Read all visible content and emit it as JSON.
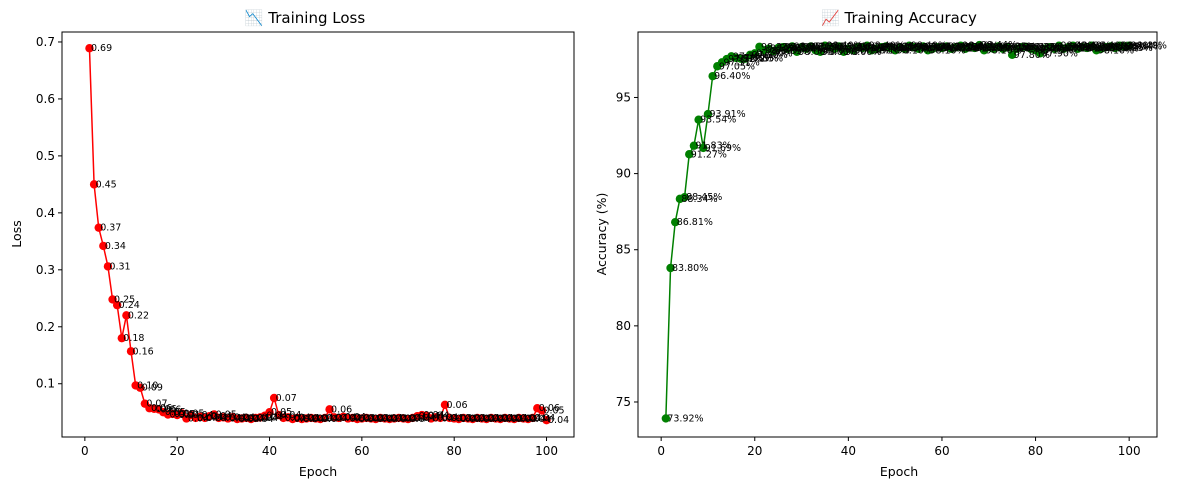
{
  "chart_data": [
    {
      "type": "line",
      "title": "📉 Training Loss",
      "xlabel": "Epoch",
      "ylabel": "Loss",
      "xlim": [
        -4.95,
        105.95
      ],
      "ylim": [
        0.0065,
        0.7175
      ],
      "xticks": [
        0,
        20,
        40,
        60,
        80,
        100
      ],
      "yticks": [
        0.1,
        0.2,
        0.3,
        0.4,
        0.5,
        0.6,
        0.7
      ],
      "ytick_labels": [
        "0.1",
        "0.2",
        "0.3",
        "0.4",
        "0.5",
        "0.6",
        "0.7"
      ],
      "grid": false,
      "color": "#ff0000",
      "label_suffix": "",
      "label_decimals": 2,
      "x": [
        1,
        2,
        3,
        4,
        5,
        6,
        7,
        8,
        9,
        10,
        11,
        12,
        13,
        14,
        15,
        16,
        17,
        18,
        19,
        20,
        21,
        22,
        23,
        24,
        25,
        26,
        27,
        28,
        29,
        30,
        31,
        32,
        33,
        34,
        35,
        36,
        37,
        38,
        39,
        40,
        41,
        42,
        43,
        44,
        45,
        46,
        47,
        48,
        49,
        50,
        51,
        52,
        53,
        54,
        55,
        56,
        57,
        58,
        59,
        60,
        61,
        62,
        63,
        64,
        65,
        66,
        67,
        68,
        69,
        70,
        71,
        72,
        73,
        74,
        75,
        76,
        77,
        78,
        79,
        80,
        81,
        82,
        83,
        84,
        85,
        86,
        87,
        88,
        89,
        90,
        91,
        92,
        93,
        94,
        95,
        96,
        97,
        98,
        99,
        100
      ],
      "y": [
        0.689,
        0.45,
        0.374,
        0.342,
        0.306,
        0.248,
        0.238,
        0.18,
        0.22,
        0.157,
        0.097,
        0.093,
        0.065,
        0.057,
        0.056,
        0.055,
        0.05,
        0.046,
        0.047,
        0.045,
        0.048,
        0.039,
        0.045,
        0.04,
        0.042,
        0.04,
        0.043,
        0.046,
        0.04,
        0.041,
        0.039,
        0.041,
        0.038,
        0.039,
        0.04,
        0.038,
        0.04,
        0.041,
        0.044,
        0.05,
        0.075,
        0.045,
        0.04,
        0.041,
        0.038,
        0.04,
        0.038,
        0.039,
        0.04,
        0.039,
        0.038,
        0.04,
        0.055,
        0.041,
        0.04,
        0.042,
        0.039,
        0.04,
        0.038,
        0.039,
        0.04,
        0.039,
        0.038,
        0.04,
        0.039,
        0.038,
        0.039,
        0.04,
        0.039,
        0.038,
        0.04,
        0.043,
        0.045,
        0.044,
        0.039,
        0.041,
        0.04,
        0.063,
        0.04,
        0.039,
        0.038,
        0.04,
        0.039,
        0.038,
        0.04,
        0.039,
        0.038,
        0.04,
        0.039,
        0.038,
        0.04,
        0.039,
        0.038,
        0.04,
        0.039,
        0.038,
        0.04,
        0.057,
        0.053,
        0.036
      ]
    },
    {
      "type": "line",
      "title": "📈 Training Accuracy",
      "xlabel": "Epoch",
      "ylabel": "Accuracy (%)",
      "xlim": [
        -4.95,
        105.95
      ],
      "ylim": [
        72.7,
        99.3
      ],
      "xticks": [
        0,
        20,
        40,
        60,
        80,
        100
      ],
      "yticks": [
        75,
        80,
        85,
        90,
        95
      ],
      "ytick_labels": [
        "75",
        "80",
        "85",
        "90",
        "95"
      ],
      "grid": false,
      "color": "#008000",
      "label_suffix": "%",
      "label_decimals": 2,
      "x": [
        1,
        2,
        3,
        4,
        5,
        6,
        7,
        8,
        9,
        10,
        11,
        12,
        13,
        14,
        15,
        16,
        17,
        18,
        19,
        20,
        21,
        22,
        23,
        24,
        25,
        26,
        27,
        28,
        29,
        30,
        31,
        32,
        33,
        34,
        35,
        36,
        37,
        38,
        39,
        40,
        41,
        42,
        43,
        44,
        45,
        46,
        47,
        48,
        49,
        50,
        51,
        52,
        53,
        54,
        55,
        56,
        57,
        58,
        59,
        60,
        61,
        62,
        63,
        64,
        65,
        66,
        67,
        68,
        69,
        70,
        71,
        72,
        73,
        74,
        75,
        76,
        77,
        78,
        79,
        80,
        81,
        82,
        83,
        84,
        85,
        86,
        87,
        88,
        89,
        90,
        91,
        92,
        93,
        94,
        95,
        96,
        97,
        98,
        99,
        100
      ],
      "y": [
        73.92,
        83.8,
        86.81,
        88.34,
        88.45,
        91.27,
        91.83,
        93.54,
        91.69,
        93.91,
        96.4,
        97.05,
        97.31,
        97.52,
        97.7,
        97.6,
        97.55,
        97.55,
        97.8,
        97.9,
        98.33,
        98.1,
        98.2,
        98.05,
        98.25,
        98.3,
        98.2,
        98.35,
        98.0,
        98.3,
        98.2,
        98.35,
        98.1,
        98.0,
        98.4,
        98.3,
        98.2,
        98.35,
        98.0,
        98.2,
        98.1,
        98.3,
        98.25,
        98.4,
        98.1,
        98.2,
        98.3,
        98.35,
        98.25,
        98.1,
        98.3,
        98.2,
        98.4,
        98.3,
        98.2,
        98.35,
        98.1,
        98.2,
        98.3,
        98.25,
        98.35,
        98.2,
        98.3,
        98.4,
        98.2,
        98.3,
        98.25,
        98.44,
        98.1,
        98.3,
        98.2,
        98.35,
        98.2,
        98.3,
        97.8,
        98.2,
        98.3,
        98.33,
        98.2,
        98.1,
        97.9,
        98.2,
        98.3,
        98.2,
        98.4,
        98.2,
        98.3,
        98.4,
        98.2,
        98.3,
        98.25,
        98.4,
        98.1,
        98.2,
        98.3,
        98.35,
        98.25,
        98.4,
        98.34,
        98.4
      ]
    }
  ]
}
